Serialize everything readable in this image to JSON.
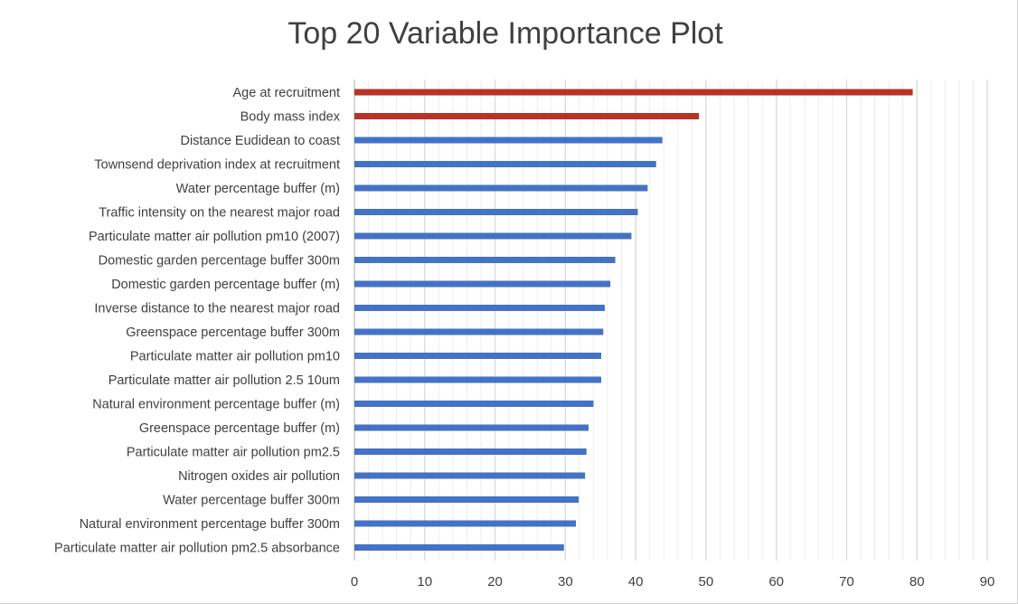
{
  "chart_data": {
    "type": "bar",
    "orientation": "horizontal",
    "title": "Top 20 Variable Importance Plot",
    "xlabel": "",
    "ylabel": "",
    "xlim": [
      0,
      90
    ],
    "x_ticks": [
      "0",
      "10",
      "20",
      "30",
      "40",
      "50",
      "60",
      "70",
      "80",
      "90"
    ],
    "major_grid": true,
    "minor_grid": true,
    "legend": "none",
    "colors": {
      "highlight": "#b83227",
      "default": "#4472c4",
      "grid": "#d9d9d9",
      "minor_grid": "#ececec"
    },
    "categories": [
      "Age at recruitment",
      "Body mass index",
      "Distance Eudidean to coast",
      "Townsend deprivation index at recruitment",
      "Water percentage buffer (m)",
      "Traffic intensity on the nearest major road",
      "Particulate matter air pollution pm10 (2007)",
      "Domestic garden percentage buffer 300m",
      "Domestic garden percentage buffer (m)",
      "Inverse distance to the nearest major road",
      "Greenspace percentage buffer 300m",
      "Particulate matter air pollution pm10",
      "Particulate matter air pollution 2.5 10um",
      "Natural environment percentage buffer (m)",
      "Greenspace percentage buffer (m)",
      "Particulate matter air pollution pm2.5",
      "Nitrogen oxides air pollution",
      "Water percentage buffer 300m",
      "Natural environment percentage buffer 300m",
      "Particulate matter air pollution pm2.5 absorbance"
    ],
    "values": [
      79.4,
      49.0,
      43.8,
      42.9,
      41.7,
      40.3,
      39.4,
      37.1,
      36.4,
      35.6,
      35.4,
      35.1,
      35.1,
      34.0,
      33.3,
      33.0,
      32.8,
      31.9,
      31.5,
      29.8
    ],
    "highlight": [
      true,
      true,
      false,
      false,
      false,
      false,
      false,
      false,
      false,
      false,
      false,
      false,
      false,
      false,
      false,
      false,
      false,
      false,
      false,
      false
    ]
  }
}
